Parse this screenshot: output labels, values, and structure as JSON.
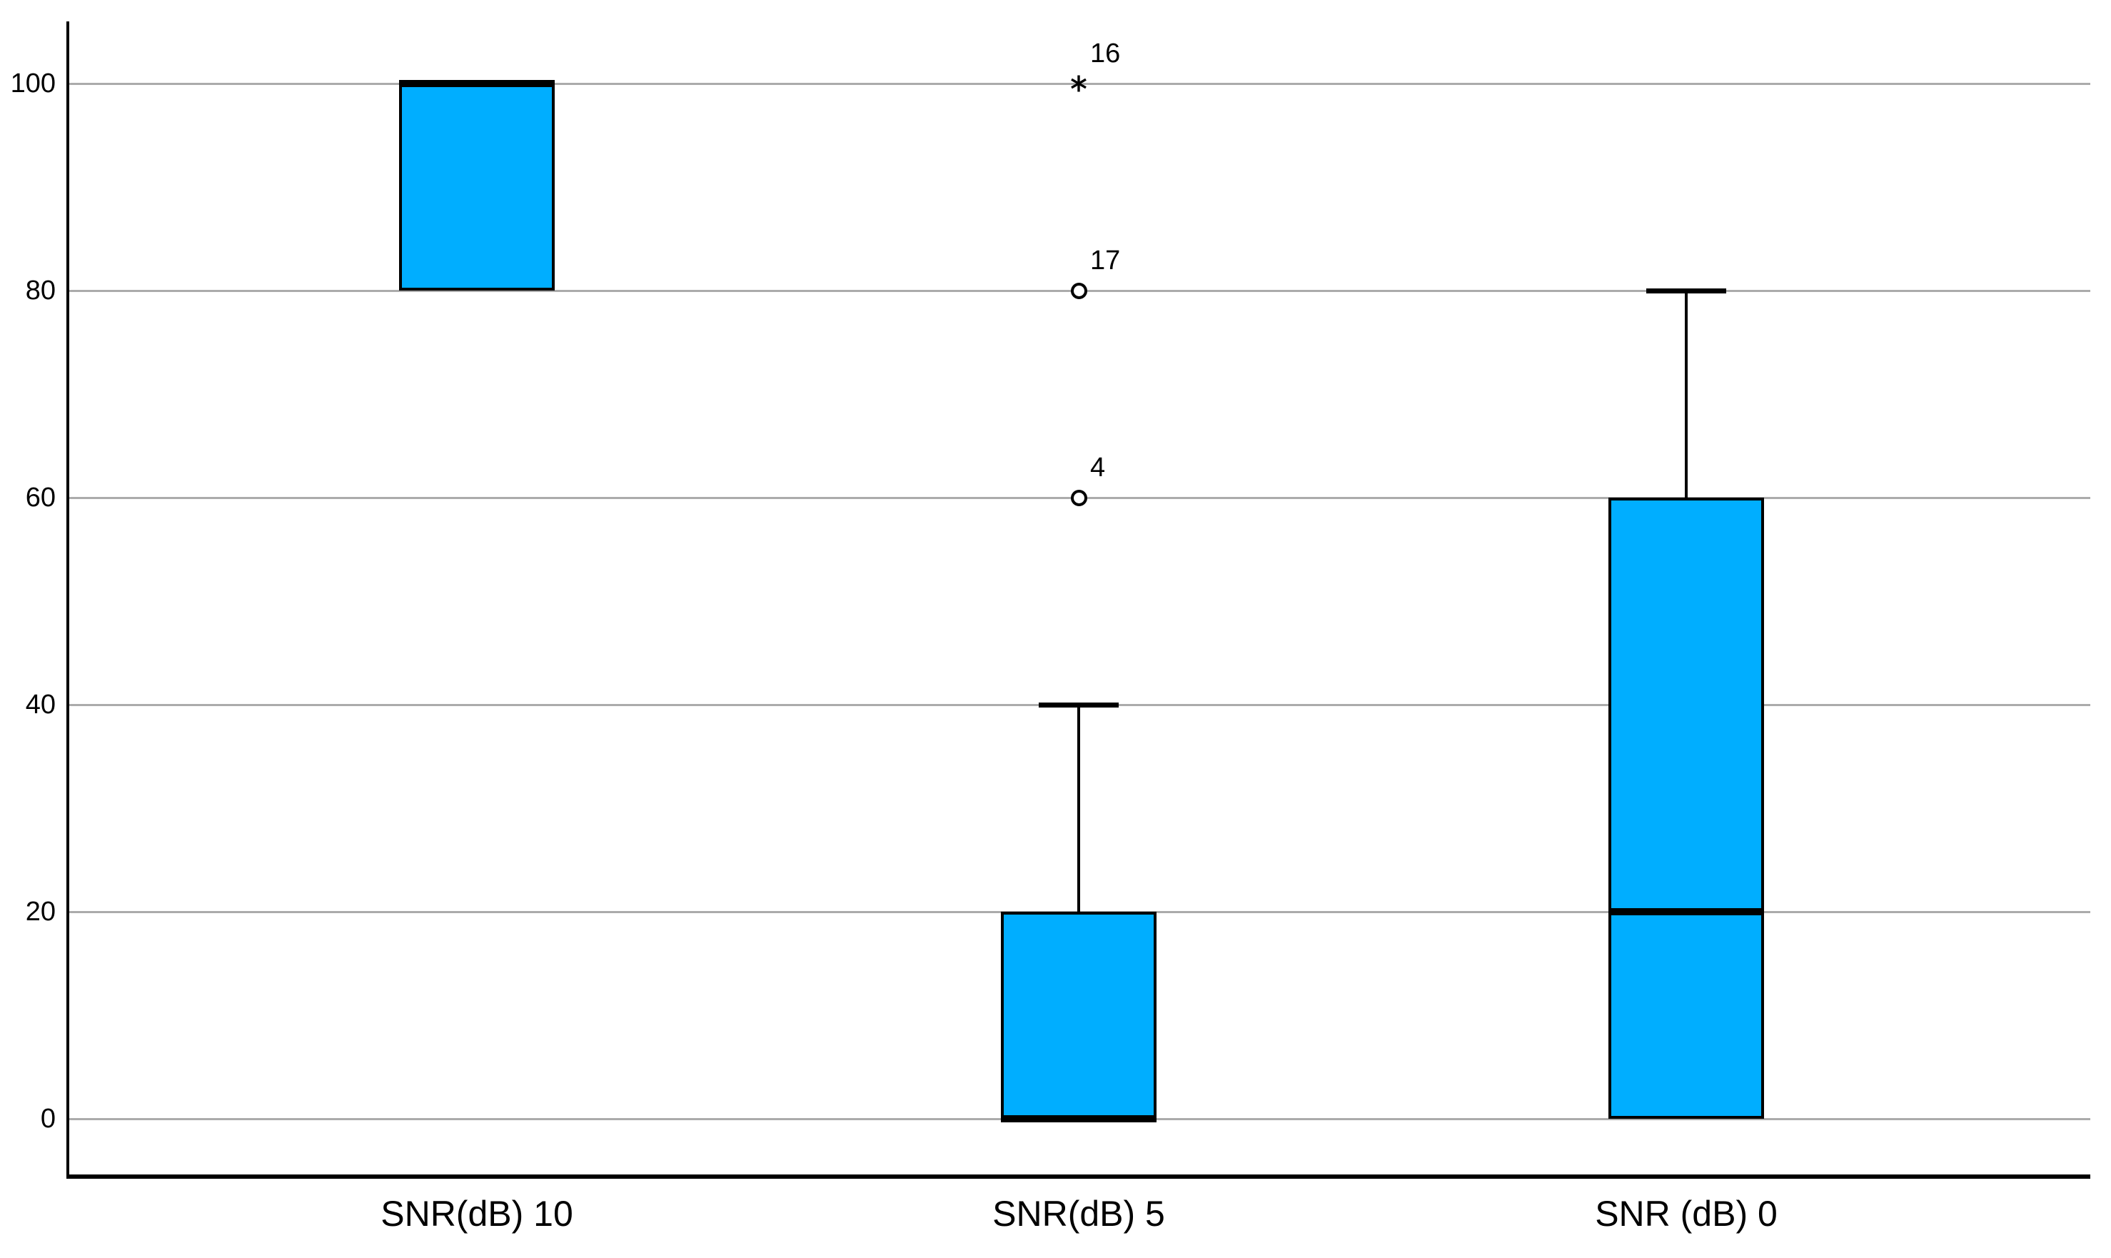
{
  "chart_data": {
    "type": "boxplot",
    "title": "",
    "xlabel": "",
    "ylabel": "",
    "categories": [
      "SNR(dB) 10",
      "SNR(dB) 5",
      "SNR (dB) 0"
    ],
    "yticks": [
      0,
      20,
      40,
      60,
      80,
      100
    ],
    "ytick_labels": [
      "0",
      "20",
      "40",
      "60",
      "80",
      "100"
    ],
    "ylim": [
      -5.9,
      106
    ],
    "grid": "horizontal",
    "legend_position": "none",
    "series": [
      {
        "category": "SNR(dB) 10",
        "whisker_low": 80,
        "q1": 80,
        "median": 100,
        "q3": 100,
        "whisker_high": 100,
        "outliers": []
      },
      {
        "category": "SNR(dB) 5",
        "whisker_low": 0,
        "q1": 0,
        "median": 0,
        "q3": 20,
        "whisker_high": 40,
        "outliers": [
          {
            "value": 60,
            "label": "4",
            "marker": "circle-outlier"
          },
          {
            "value": 80,
            "label": "17",
            "marker": "circle-outlier"
          },
          {
            "value": 100,
            "label": "16",
            "marker": "asterisk-extreme"
          }
        ]
      },
      {
        "category": "SNR (dB) 0",
        "whisker_low": 0,
        "q1": 0,
        "median": 20,
        "q3": 60,
        "whisker_high": 80,
        "outliers": []
      }
    ],
    "colors": {
      "box_fill": "#00AEFF",
      "box_border": "#000000",
      "median": "#000000",
      "whisker": "#000000",
      "gridline": "#ABABAB",
      "axis": "#000000",
      "background": "#FFFFFF",
      "text": "#000000"
    }
  }
}
